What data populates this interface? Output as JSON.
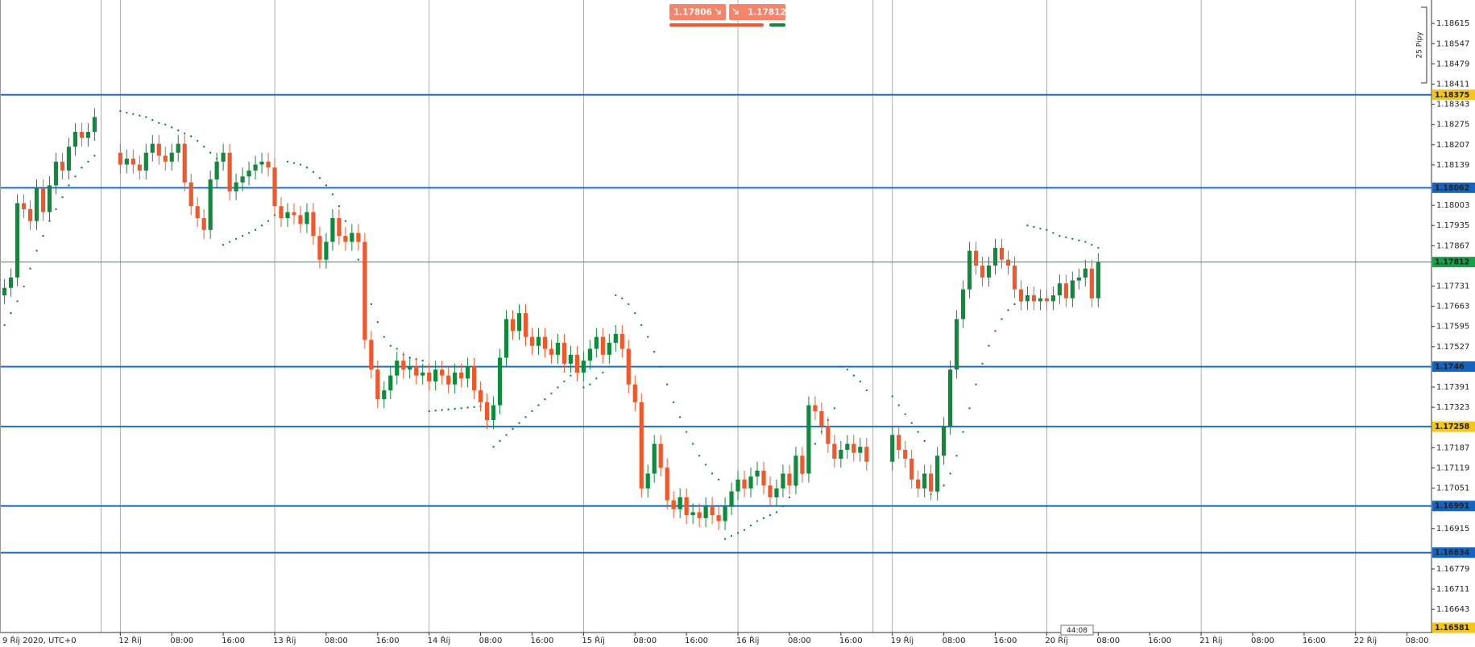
{
  "chart_data": {
    "type": "candlestick",
    "x": [
      -18,
      -17,
      -16,
      -15,
      -14,
      -13,
      -12,
      -11,
      -10,
      -9,
      -8,
      -7,
      -6,
      -5,
      -4,
      0,
      1,
      2,
      3,
      4,
      5,
      6,
      7,
      8,
      9,
      10,
      11,
      12,
      13,
      14,
      15,
      16,
      17,
      18,
      19,
      20,
      21,
      22,
      23,
      24,
      25,
      26,
      27,
      28,
      29,
      30,
      31,
      32,
      33,
      34,
      35,
      36,
      37,
      38,
      39,
      40,
      41,
      42,
      43,
      44,
      45,
      46,
      47,
      48,
      49,
      50,
      51,
      52,
      53,
      54,
      55,
      56,
      57,
      58,
      59,
      60,
      61,
      62,
      63,
      64,
      65,
      66,
      67,
      68,
      69,
      70,
      71,
      72,
      73,
      74,
      75,
      76,
      77,
      78,
      79,
      80,
      81,
      82,
      83,
      84,
      85,
      86,
      87,
      88,
      89,
      90,
      91,
      92,
      93,
      94,
      95,
      96,
      97,
      98,
      99,
      100,
      101,
      102,
      103,
      104,
      105,
      106,
      107,
      108,
      109,
      110,
      111,
      112,
      113,
      114,
      115,
      116,
      120,
      121,
      122,
      123,
      124,
      125,
      126,
      127,
      128,
      129,
      130,
      131,
      132,
      133,
      134,
      135,
      136,
      137,
      138,
      139,
      140,
      141,
      142,
      143,
      144,
      145,
      146,
      147,
      148,
      149,
      150,
      151,
      152
    ],
    "open": [
      1.177,
      1.17725,
      1.1776,
      1.1801,
      1.1799,
      1.1795,
      1.1806,
      1.1798,
      1.1807,
      1.1815,
      1.1812,
      1.182,
      1.1825,
      1.1823,
      1.1825,
      1.1818,
      1.1814,
      1.1816,
      1.1814,
      1.1812,
      1.1818,
      1.1821,
      1.1817,
      1.1815,
      1.1818,
      1.1821,
      1.1808,
      1.18,
      1.1796,
      1.1792,
      1.1809,
      1.1815,
      1.1818,
      1.1805,
      1.1808,
      1.181,
      1.1812,
      1.1814,
      1.1815,
      1.1813,
      1.18,
      1.1796,
      1.1798,
      1.1797,
      1.1794,
      1.1798,
      1.179,
      1.1782,
      1.1788,
      1.1796,
      1.179,
      1.1788,
      1.1791,
      1.1788,
      1.1755,
      1.1745,
      1.1735,
      1.1738,
      1.1743,
      1.1748,
      1.1745,
      1.1746,
      1.1743,
      1.1744,
      1.1741,
      1.1745,
      1.1743,
      1.174,
      1.1744,
      1.1742,
      1.1746,
      1.1738,
      1.1734,
      1.1728,
      1.1733,
      1.1749,
      1.1762,
      1.1758,
      1.1764,
      1.1756,
      1.1753,
      1.1756,
      1.1752,
      1.175,
      1.1754,
      1.1747,
      1.175,
      1.1744,
      1.1748,
      1.1752,
      1.1756,
      1.175,
      1.1754,
      1.1757,
      1.1752,
      1.174,
      1.1734,
      1.1705,
      1.171,
      1.172,
      1.1712,
      1.1701,
      1.1698,
      1.1702,
      1.1696,
      1.1697,
      1.1695,
      1.1699,
      1.1696,
      1.1694,
      1.1699,
      1.1704,
      1.1708,
      1.1705,
      1.1709,
      1.1711,
      1.1706,
      1.1702,
      1.1705,
      1.171,
      1.1706,
      1.1716,
      1.171,
      1.1733,
      1.1731,
      1.1726,
      1.172,
      1.1715,
      1.1718,
      1.172,
      1.1717,
      1.1719,
      1.1714,
      1.1723,
      1.1718,
      1.1715,
      1.1708,
      1.1705,
      1.171,
      1.1704,
      1.1716,
      1.1726,
      1.1745,
      1.1762,
      1.1772,
      1.1785,
      1.178,
      1.1776,
      1.178,
      1.1786,
      1.1782,
      1.178,
      1.1772,
      1.1768,
      1.177,
      1.1768,
      1.1769,
      1.1768,
      1.177,
      1.1774,
      1.1769,
      1.1775,
      1.1776,
      1.1779,
      1.1769
    ],
    "high": [
      1.17755,
      1.1779,
      1.1804,
      1.1804,
      1.1802,
      1.1809,
      1.1809,
      1.181,
      1.1818,
      1.1818,
      1.1823,
      1.1828,
      1.1828,
      1.1828,
      1.1833,
      1.1821,
      1.1819,
      1.1819,
      1.1817,
      1.1821,
      1.1824,
      1.1824,
      1.182,
      1.1821,
      1.1824,
      1.1824,
      1.1811,
      1.1803,
      1.1799,
      1.1812,
      1.1818,
      1.1821,
      1.1821,
      1.1811,
      1.1813,
      1.1815,
      1.1817,
      1.1818,
      1.1818,
      1.1816,
      1.1803,
      1.1801,
      1.1801,
      1.18,
      1.1801,
      1.1801,
      1.1793,
      1.1791,
      1.1799,
      1.1799,
      1.1793,
      1.1794,
      1.1794,
      1.1791,
      1.1758,
      1.1748,
      1.1741,
      1.1746,
      1.1751,
      1.1751,
      1.1749,
      1.1749,
      1.1747,
      1.1747,
      1.1748,
      1.1748,
      1.1746,
      1.1747,
      1.1747,
      1.1749,
      1.1749,
      1.1741,
      1.1737,
      1.1736,
      1.1752,
      1.1765,
      1.1765,
      1.1767,
      1.1767,
      1.1759,
      1.1759,
      1.1759,
      1.1755,
      1.1757,
      1.1757,
      1.1753,
      1.1753,
      1.1751,
      1.1755,
      1.1759,
      1.1759,
      1.1757,
      1.176,
      1.176,
      1.1755,
      1.1743,
      1.1737,
      1.1713,
      1.1723,
      1.1723,
      1.1715,
      1.1704,
      1.1705,
      1.1705,
      1.17,
      1.17,
      1.1702,
      1.1702,
      1.1699,
      1.1702,
      1.1707,
      1.1711,
      1.1711,
      1.1712,
      1.1714,
      1.1714,
      1.1709,
      1.1708,
      1.1713,
      1.1713,
      1.1719,
      1.1719,
      1.1736,
      1.1736,
      1.1734,
      1.1729,
      1.1723,
      1.1721,
      1.1723,
      1.1723,
      1.1722,
      1.1722,
      1.1726,
      1.1726,
      1.1721,
      1.1718,
      1.1711,
      1.1713,
      1.1713,
      1.1719,
      1.1729,
      1.1748,
      1.1765,
      1.1775,
      1.1788,
      1.1788,
      1.1783,
      1.1783,
      1.1789,
      1.1789,
      1.1785,
      1.1783,
      1.1775,
      1.1773,
      1.1773,
      1.1772,
      1.1772,
      1.1773,
      1.1777,
      1.1777,
      1.1778,
      1.1779,
      1.1782,
      1.1782,
      1.17842
    ],
    "low": [
      1.1767,
      1.17695,
      1.1773,
      1.1796,
      1.1792,
      1.1792,
      1.1795,
      1.1795,
      1.1804,
      1.1809,
      1.1809,
      1.1817,
      1.182,
      1.182,
      1.1822,
      1.1811,
      1.1811,
      1.1811,
      1.1809,
      1.1809,
      1.1815,
      1.1814,
      1.1812,
      1.1812,
      1.1815,
      1.1805,
      1.1797,
      1.1793,
      1.1789,
      1.1789,
      1.1806,
      1.1812,
      1.1802,
      1.1802,
      1.1805,
      1.1807,
      1.1809,
      1.1811,
      1.181,
      1.1797,
      1.1793,
      1.1793,
      1.1794,
      1.1791,
      1.1791,
      1.1787,
      1.1779,
      1.1779,
      1.1785,
      1.1787,
      1.1785,
      1.1785,
      1.1785,
      1.1752,
      1.1742,
      1.1732,
      1.1732,
      1.1735,
      1.174,
      1.1742,
      1.1742,
      1.174,
      1.174,
      1.1738,
      1.1738,
      1.174,
      1.1737,
      1.1737,
      1.1739,
      1.1739,
      1.1735,
      1.1731,
      1.1725,
      1.1725,
      1.173,
      1.1746,
      1.1755,
      1.1755,
      1.1753,
      1.175,
      1.175,
      1.1749,
      1.1747,
      1.1747,
      1.1744,
      1.1744,
      1.1741,
      1.1741,
      1.1745,
      1.1749,
      1.1747,
      1.1747,
      1.1751,
      1.1749,
      1.1737,
      1.1731,
      1.1702,
      1.1702,
      1.1707,
      1.1709,
      1.1698,
      1.1695,
      1.1695,
      1.1693,
      1.1693,
      1.1692,
      1.1692,
      1.1693,
      1.1691,
      1.1691,
      1.1696,
      1.1701,
      1.1702,
      1.1702,
      1.1706,
      1.1703,
      1.1699,
      1.1699,
      1.1702,
      1.1703,
      1.1703,
      1.1707,
      1.1707,
      1.1728,
      1.1723,
      1.1717,
      1.1712,
      1.1712,
      1.1715,
      1.1714,
      1.1714,
      1.1711,
      1.1711,
      1.1715,
      1.1712,
      1.1705,
      1.1702,
      1.1702,
      1.1701,
      1.1701,
      1.1713,
      1.1723,
      1.1742,
      1.1759,
      1.1769,
      1.1777,
      1.1773,
      1.1773,
      1.1777,
      1.1779,
      1.1777,
      1.1769,
      1.1765,
      1.1765,
      1.1765,
      1.1765,
      1.1765,
      1.1765,
      1.1767,
      1.1766,
      1.1766,
      1.1772,
      1.1773,
      1.1766,
      1.1766
    ],
    "close": [
      1.17725,
      1.1776,
      1.1801,
      1.1799,
      1.1795,
      1.1806,
      1.1798,
      1.1807,
      1.1815,
      1.1812,
      1.182,
      1.1825,
      1.1823,
      1.1825,
      1.183,
      1.1814,
      1.1816,
      1.1814,
      1.1812,
      1.1818,
      1.1821,
      1.1817,
      1.1815,
      1.1818,
      1.1821,
      1.1808,
      1.18,
      1.1796,
      1.1792,
      1.1809,
      1.1815,
      1.1818,
      1.1805,
      1.1808,
      1.181,
      1.1812,
      1.1814,
      1.1815,
      1.1813,
      1.18,
      1.1796,
      1.1798,
      1.1797,
      1.1794,
      1.1798,
      1.179,
      1.1782,
      1.1788,
      1.1796,
      1.179,
      1.1788,
      1.1791,
      1.1788,
      1.1755,
      1.1745,
      1.1735,
      1.1738,
      1.1743,
      1.1748,
      1.1745,
      1.1746,
      1.1743,
      1.1744,
      1.1741,
      1.1745,
      1.1743,
      1.174,
      1.1744,
      1.1742,
      1.1746,
      1.1738,
      1.1734,
      1.1728,
      1.1733,
      1.1749,
      1.1762,
      1.1758,
      1.1764,
      1.1756,
      1.1753,
      1.1756,
      1.1752,
      1.175,
      1.1754,
      1.1747,
      1.175,
      1.1744,
      1.1748,
      1.1752,
      1.1756,
      1.175,
      1.1754,
      1.1757,
      1.1752,
      1.174,
      1.1734,
      1.1705,
      1.171,
      1.172,
      1.1712,
      1.1701,
      1.1698,
      1.1702,
      1.1696,
      1.1697,
      1.1695,
      1.1699,
      1.1696,
      1.1694,
      1.1699,
      1.1704,
      1.1708,
      1.1705,
      1.1709,
      1.1711,
      1.1706,
      1.1702,
      1.1705,
      1.171,
      1.1706,
      1.1716,
      1.171,
      1.1733,
      1.1731,
      1.1726,
      1.172,
      1.1715,
      1.1718,
      1.172,
      1.1717,
      1.1719,
      1.1714,
      1.1723,
      1.1718,
      1.1715,
      1.1708,
      1.1705,
      1.171,
      1.1704,
      1.1716,
      1.1726,
      1.1745,
      1.1762,
      1.1772,
      1.1785,
      1.178,
      1.1776,
      1.178,
      1.1786,
      1.1782,
      1.178,
      1.1772,
      1.1768,
      1.177,
      1.1768,
      1.1769,
      1.1768,
      1.177,
      1.1774,
      1.1769,
      1.1775,
      1.1776,
      1.1779,
      1.1769,
      1.17812
    ],
    "up_color": "#0f8a3c",
    "down_color": "#f0582c",
    "sar": {
      "color": "#0f8a3c",
      "values": [
        1.176,
        1.1764,
        1.1768,
        1.1773,
        1.1779,
        1.1785,
        1.179,
        1.1795,
        1.1799,
        1.1803,
        1.1807,
        1.181,
        1.1813,
        1.1815,
        1.1817,
        1.1832,
        1.18315,
        1.1831,
        1.18305,
        1.183,
        1.1829,
        1.1828,
        1.18275,
        1.18265,
        1.18255,
        1.18245,
        1.18235,
        1.1822,
        1.182,
        1.1818,
        1.1816,
        1.1787,
        1.1788,
        1.1789,
        1.179,
        1.1791,
        1.1792,
        1.17935,
        1.1795,
        1.1797,
        1.1799,
        1.1815,
        1.18145,
        1.1814,
        1.1813,
        1.18115,
        1.18095,
        1.1807,
        1.1804,
        1.18,
        1.1795,
        1.1789,
        1.1782,
        1.1774,
        1.1767,
        1.1761,
        1.1756,
        1.1753,
        1.1752,
        1.175,
        1.1749,
        1.17485,
        1.1748,
        1.1731,
        1.17312,
        1.17314,
        1.17316,
        1.17318,
        1.1732,
        1.17322,
        1.17324,
        1.17326,
        1.1733,
        1.1719,
        1.1721,
        1.1723,
        1.1725,
        1.1727,
        1.1729,
        1.1731,
        1.1733,
        1.1735,
        1.1737,
        1.1739,
        1.1741,
        1.1743,
        1.1745,
        1.1739,
        1.174,
        1.1742,
        1.1744,
        1.1746,
        1.177,
        1.1769,
        1.1767,
        1.1764,
        1.176,
        1.1756,
        1.1751,
        1.1746,
        1.174,
        1.1734,
        1.1729,
        1.1724,
        1.172,
        1.1716,
        1.1713,
        1.171,
        1.1708,
        1.1688,
        1.1689,
        1.169,
        1.1691,
        1.16925,
        1.1694,
        1.1695,
        1.1696,
        1.1697,
        1.1699,
        1.1702,
        1.1706,
        1.171,
        1.1715,
        1.172,
        1.1724,
        1.1728,
        1.1732,
        1.1746,
        1.1745,
        1.1743,
        1.1741,
        1.1738,
        1.1736,
        1.1733,
        1.173,
        1.1727,
        1.1724,
        1.1721,
        1.1703,
        1.1704,
        1.1706,
        1.171,
        1.1716,
        1.1724,
        1.1732,
        1.174,
        1.1747,
        1.1753,
        1.1758,
        1.1762,
        1.1765,
        1.1767,
        1.1768,
        1.17935,
        1.1793,
        1.17925,
        1.1792,
        1.1791,
        1.179,
        1.17895,
        1.1789,
        1.17885,
        1.1788,
        1.1787,
        1.1786
      ]
    },
    "xlim": [
      -18.7,
      203.8
    ],
    "ylim": [
      1.16565,
      1.18694
    ],
    "yticks": [
      1.18615,
      1.18547,
      1.18479,
      1.18411,
      1.18343,
      1.18275,
      1.18207,
      1.18139,
      1.18003,
      1.17935,
      1.17867,
      1.17731,
      1.17663,
      1.17595,
      1.17527,
      1.17391,
      1.17323,
      1.17187,
      1.17119,
      1.17051,
      1.16915,
      1.16779,
      1.16711,
      1.16643
    ],
    "xticks": [
      {
        "value": 0,
        "label": "12 Říj"
      },
      {
        "value": 8,
        "label": "08:00"
      },
      {
        "value": 16,
        "label": "16:00"
      },
      {
        "value": 24,
        "label": "13 Říj"
      },
      {
        "value": 32,
        "label": "08:00"
      },
      {
        "value": 40,
        "label": "16:00"
      },
      {
        "value": 48,
        "label": "14 Říj"
      },
      {
        "value": 56,
        "label": "08:00"
      },
      {
        "value": 64,
        "label": "16:00"
      },
      {
        "value": 72,
        "label": "15 Říj"
      },
      {
        "value": 80,
        "label": "08:00"
      },
      {
        "value": 88,
        "label": "16:00"
      },
      {
        "value": 96,
        "label": "16 Říj"
      },
      {
        "value": 104,
        "label": "08:00"
      },
      {
        "value": 112,
        "label": "16:00"
      },
      {
        "value": 120,
        "label": "19 Říj"
      },
      {
        "value": 128,
        "label": "08:00"
      },
      {
        "value": 136,
        "label": "16:00"
      },
      {
        "value": 144,
        "label": "20 Říj"
      },
      {
        "value": 152,
        "label": "08:00"
      },
      {
        "value": 160,
        "label": "16:00"
      },
      {
        "value": 168,
        "label": "21 Říj"
      },
      {
        "value": 176,
        "label": "08:00"
      },
      {
        "value": 184,
        "label": "16:00"
      },
      {
        "value": 192,
        "label": "22 Říj"
      },
      {
        "value": 200,
        "label": "08:00"
      }
    ],
    "x_corner_label": "9 Říj 2020, UTC+0",
    "day_lines": [
      -3,
      0,
      24,
      48,
      72,
      96,
      117,
      120,
      144,
      168,
      192
    ],
    "levels": [
      {
        "value": 1.18375,
        "color": "#1f6fbf",
        "tag": "#f5c518",
        "text_color": "#222222"
      },
      {
        "value": 1.18062,
        "color": "#1f6fbf",
        "tag": "#1565c0",
        "text_color": "#ffffff"
      },
      {
        "value": 1.1746,
        "color": "#1f6fbf",
        "tag": "#1565c0",
        "text_color": "#ffffff"
      },
      {
        "value": 1.17258,
        "color": "#1f6fbf",
        "tag": "#f5c518",
        "text_color": "#222222"
      },
      {
        "value": 1.16991,
        "color": "#1f6fbf",
        "tag": "#1565c0",
        "text_color": "#ffffff"
      },
      {
        "value": 1.16834,
        "color": "#1f6fbf",
        "tag": "#1565c0",
        "text_color": "#ffffff"
      }
    ],
    "current_price": {
      "value": 1.17812,
      "color": "#17a04a"
    },
    "bottom_tag": {
      "value": 1.16581,
      "color": "#f5c518"
    },
    "countdown": "44:08",
    "ruler_label": "25 Pipy"
  },
  "trade_panel": {
    "sell": "1.17806",
    "buy": "1.17812"
  }
}
